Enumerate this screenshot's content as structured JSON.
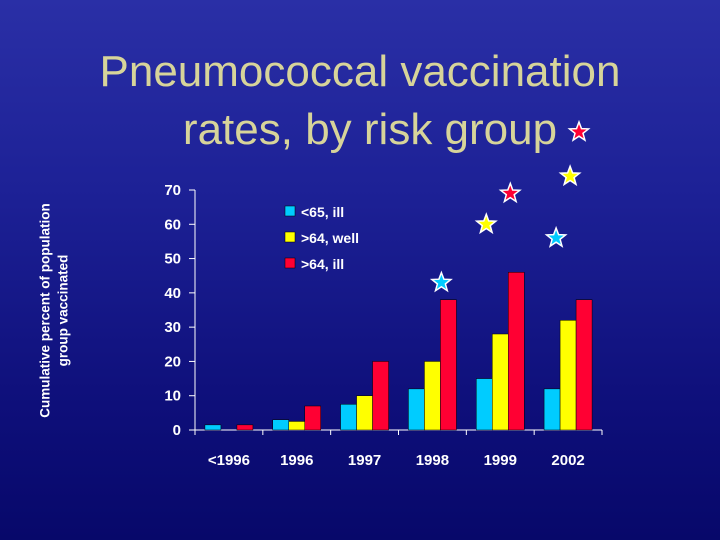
{
  "slide": {
    "title_line1": "Pneumococcal vaccination",
    "title_line2": "rates, by risk group",
    "title_color": "#d7d49a",
    "background_color": "#1d2196"
  },
  "chart_data": {
    "type": "bar",
    "title": "",
    "ylabel_line1": "Cumulative percent of population",
    "ylabel_line2": "group  vaccinated",
    "xlabel": "",
    "ylim": [
      0,
      70
    ],
    "yticks": [
      0,
      10,
      20,
      30,
      40,
      50,
      60,
      70
    ],
    "categories": [
      "<1996",
      "1996",
      "1997",
      "1998",
      "1999",
      "2002"
    ],
    "grid": false,
    "legend_position": "top-left",
    "series": [
      {
        "name": "<65, ill",
        "color": "#00ccff",
        "values": [
          1.5,
          3,
          7.5,
          12,
          15,
          12
        ]
      },
      {
        "name": ">64, well",
        "color": "#ffff00",
        "values": [
          0,
          2.5,
          10,
          20,
          28,
          32
        ]
      },
      {
        "name": ">64, ill",
        "color": "#ff0033",
        "values": [
          1.5,
          7,
          20,
          38,
          46,
          38
        ]
      }
    ],
    "annotations": [
      {
        "type": "star",
        "color": "#ff0033",
        "x": "title"
      },
      {
        "type": "star",
        "color": "#00ccff",
        "x": "1998",
        "y": 43
      },
      {
        "type": "star",
        "color": "#ffff00",
        "x": "1999",
        "y": 60
      },
      {
        "type": "star",
        "color": "#ff0033",
        "x": "1999",
        "y": 69
      },
      {
        "type": "star",
        "color": "#ffff00",
        "x": "2002",
        "y": 74
      },
      {
        "type": "star",
        "color": "#00ccff",
        "x": "2002",
        "y": 56
      }
    ]
  }
}
